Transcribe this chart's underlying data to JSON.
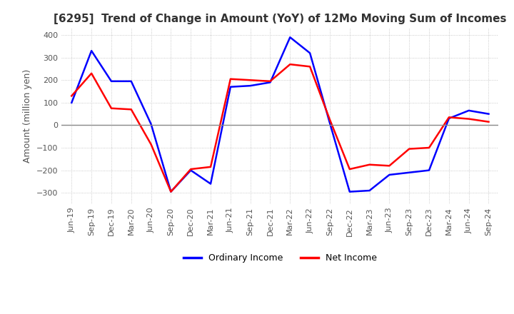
{
  "title": "[6295]  Trend of Change in Amount (YoY) of 12Mo Moving Sum of Incomes",
  "ylabel": "Amount (million yen)",
  "ylim": [
    -350,
    430
  ],
  "yticks": [
    -300,
    -200,
    -100,
    0,
    100,
    200,
    300,
    400
  ],
  "line_colors": {
    "ordinary": "#0000FF",
    "net": "#FF0000"
  },
  "legend_labels": [
    "Ordinary Income",
    "Net Income"
  ],
  "x_labels": [
    "Jun-19",
    "Sep-19",
    "Dec-19",
    "Mar-20",
    "Jun-20",
    "Sep-20",
    "Dec-20",
    "Mar-21",
    "Jun-21",
    "Sep-21",
    "Dec-21",
    "Mar-22",
    "Jun-22",
    "Sep-22",
    "Dec-22",
    "Mar-23",
    "Jun-23",
    "Sep-23",
    "Dec-23",
    "Mar-24",
    "Jun-24",
    "Sep-24"
  ],
  "ordinary_income": [
    100,
    330,
    195,
    195,
    5,
    -295,
    -200,
    -260,
    170,
    175,
    190,
    390,
    320,
    10,
    -295,
    -290,
    -220,
    -210,
    -200,
    30,
    65,
    50
  ],
  "net_income": [
    130,
    230,
    75,
    70,
    -85,
    -295,
    -195,
    -185,
    205,
    200,
    195,
    270,
    260,
    25,
    -195,
    -175,
    -180,
    -105,
    -100,
    35,
    28,
    15
  ],
  "background_color": "#ffffff",
  "grid_color": "#bbbbbb",
  "title_color": "#333333",
  "title_fontsize": 11,
  "axis_fontsize": 9,
  "tick_fontsize": 8
}
